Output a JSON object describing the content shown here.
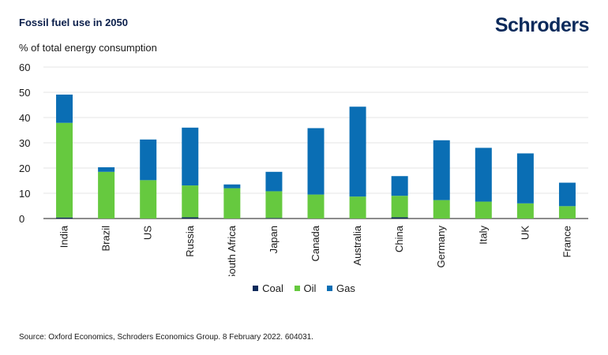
{
  "header": {
    "title": "Fossil fuel use in 2050",
    "brand": "Schroders",
    "ylabel": "% of total energy consumption"
  },
  "footer": {
    "source": "Source: Oxford Economics, Schroders Economics Group. 8 February 2022. 604031."
  },
  "colors": {
    "coal": "#0b2a5b",
    "oil": "#66c93f",
    "gas": "#0a6eb4",
    "grid": "#e6e6e6",
    "axis": "#1a1a1a"
  },
  "chart_data": {
    "type": "bar",
    "stacked": true,
    "title": "Fossil fuel use in 2050",
    "ylabel": "% of total energy consumption",
    "xlabel": "",
    "ylim": [
      0,
      60
    ],
    "yticks": [
      0,
      10,
      20,
      30,
      40,
      50,
      60
    ],
    "grid": true,
    "legend": "bottom-center",
    "categories": [
      "India",
      "Brazil",
      "US",
      "Russia",
      "South Africa",
      "Japan",
      "Canada",
      "Australia",
      "China",
      "Germany",
      "Italy",
      "UK",
      "France"
    ],
    "series": [
      {
        "name": "Coal",
        "color": "#0b2a5b",
        "values": [
          0.4,
          0,
          0,
          0.5,
          0,
          0.2,
          0,
          0,
          0.5,
          0,
          0,
          0,
          0
        ]
      },
      {
        "name": "Oil",
        "color": "#66c93f",
        "values": [
          37.5,
          18.5,
          15.2,
          12.6,
          12,
          10.6,
          9.5,
          8.7,
          8.5,
          7.3,
          6.7,
          6,
          4.9
        ]
      },
      {
        "name": "Gas",
        "color": "#0a6eb4",
        "values": [
          11.2,
          1.8,
          16.1,
          22.9,
          1.5,
          7.7,
          26.3,
          35.6,
          7.8,
          23.7,
          21.3,
          19.8,
          9.3
        ]
      }
    ]
  }
}
